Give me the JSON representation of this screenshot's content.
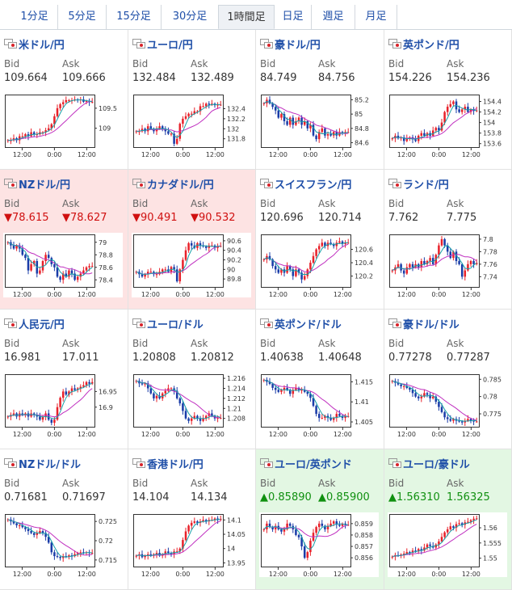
{
  "tabs": [
    "1分足",
    "5分足",
    "15分足",
    "30分足",
    "1時間足",
    "日足",
    "週足",
    "月足"
  ],
  "active_tab": "1時間足",
  "labels": {
    "bid": "Bid",
    "ask": "Ask"
  },
  "colors": {
    "up_candle": "#e8212a",
    "down_candle": "#1a3ca8",
    "ma_short": "#17a0a8",
    "ma_long": "#c030c0",
    "down_bg": "#fde3e3",
    "up_bg": "#e3f7e3",
    "link": "#1f4fa8"
  },
  "pairs": [
    {
      "name": "米ドル/円",
      "bid": "109.664",
      "ask": "109.666",
      "dir": "",
      "flag": "us-jp-flag-icon"
    },
    {
      "name": "ユーロ/円",
      "bid": "132.484",
      "ask": "132.489",
      "dir": "",
      "flag": "eu-jp-flag-icon"
    },
    {
      "name": "豪ドル/円",
      "bid": "84.749",
      "ask": "84.756",
      "dir": "",
      "flag": "au-jp-flag-icon"
    },
    {
      "name": "英ポンド/円",
      "bid": "154.226",
      "ask": "154.236",
      "dir": "",
      "flag": "gb-jp-flag-icon"
    },
    {
      "name": "NZドル/円",
      "bid": "▼78.615",
      "ask": "▼78.627",
      "dir": "down",
      "flag": "nz-jp-flag-icon"
    },
    {
      "name": "カナダドル/円",
      "bid": "▼90.491",
      "ask": "▼90.532",
      "dir": "down",
      "flag": "ca-jp-flag-icon"
    },
    {
      "name": "スイスフラン/円",
      "bid": "120.696",
      "ask": "120.714",
      "dir": "",
      "flag": "ch-jp-flag-icon"
    },
    {
      "name": "ランド/円",
      "bid": "7.762",
      "ask": "7.775",
      "dir": "",
      "flag": "za-jp-flag-icon"
    },
    {
      "name": "人民元/円",
      "bid": "16.981",
      "ask": "17.011",
      "dir": "",
      "flag": "cn-jp-flag-icon"
    },
    {
      "name": "ユーロ/ドル",
      "bid": "1.20808",
      "ask": "1.20812",
      "dir": "",
      "flag": "eu-us-flag-icon"
    },
    {
      "name": "英ポンド/ドル",
      "bid": "1.40638",
      "ask": "1.40648",
      "dir": "",
      "flag": "gb-us-flag-icon"
    },
    {
      "name": "豪ドル/ドル",
      "bid": "0.77278",
      "ask": "0.77287",
      "dir": "",
      "flag": "au-us-flag-icon"
    },
    {
      "name": "NZドル/ドル",
      "bid": "0.71681",
      "ask": "0.71697",
      "dir": "",
      "flag": "nz-us-flag-icon"
    },
    {
      "name": "香港ドル/円",
      "bid": "14.104",
      "ask": "14.134",
      "dir": "",
      "flag": "hk-jp-flag-icon"
    },
    {
      "name": "ユーロ/英ポンド",
      "bid": "▲0.85890",
      "ask": "▲0.85900",
      "dir": "up",
      "flag": "eu-gb-flag-icon"
    },
    {
      "name": "ユーロ/豪ドル",
      "bid": "▲1.56310",
      "ask": "1.56325",
      "dir": "up",
      "flag": "eu-au-flag-icon"
    }
  ],
  "chart_data": [
    {
      "type": "candlestick",
      "title": "米ドル/円",
      "x_ticks": [
        "12:00",
        "0:00",
        "12:00"
      ],
      "y_ticks": [
        "109.5",
        "109"
      ],
      "ylim": [
        108.55,
        109.8
      ],
      "closes": [
        108.7,
        108.7,
        108.75,
        108.7,
        108.8,
        108.8,
        108.85,
        108.8,
        108.9,
        108.85,
        108.85,
        108.9,
        108.9,
        108.95,
        109.0,
        109.1,
        109.3,
        109.5,
        109.6,
        109.65,
        109.7,
        109.7,
        109.7,
        109.72,
        109.7,
        109.72,
        109.66,
        109.68,
        109.65,
        109.66
      ]
    },
    {
      "type": "candlestick",
      "title": "ユーロ/円",
      "x_ticks": [
        "12:00",
        "0:00",
        "12:00"
      ],
      "y_ticks": [
        "132.4",
        "132.2",
        "132",
        "131.8"
      ],
      "ylim": [
        131.65,
        132.65
      ],
      "closes": [
        131.95,
        131.95,
        132.0,
        131.95,
        132.05,
        132.0,
        131.95,
        132.0,
        132.05,
        132.0,
        131.95,
        131.9,
        131.9,
        131.7,
        131.8,
        132.1,
        132.2,
        132.25,
        132.3,
        132.3,
        132.35,
        132.35,
        132.45,
        132.45,
        132.5,
        132.48,
        132.5,
        132.47,
        132.48,
        132.48
      ]
    },
    {
      "type": "candlestick",
      "title": "豪ドル/円",
      "x_ticks": [
        "12:00",
        "0:00",
        "12:00"
      ],
      "y_ticks": [
        "85.2",
        "85",
        "84.8",
        "84.6"
      ],
      "ylim": [
        84.55,
        85.25
      ],
      "closes": [
        85.15,
        85.2,
        85.15,
        85.1,
        85.05,
        84.95,
        85.0,
        84.9,
        84.85,
        84.95,
        84.85,
        84.9,
        84.95,
        84.85,
        84.9,
        84.8,
        84.85,
        84.7,
        84.65,
        84.75,
        84.8,
        84.7,
        84.72,
        84.7,
        84.75,
        84.7,
        84.75,
        84.74,
        84.75,
        84.75
      ]
    },
    {
      "type": "candlestick",
      "title": "英ポンド/円",
      "x_ticks": [
        "12:00",
        "0:00",
        "12:00"
      ],
      "y_ticks": [
        "154.4",
        "154.2",
        "154",
        "153.8",
        "153.6"
      ],
      "ylim": [
        153.55,
        154.5
      ],
      "closes": [
        153.7,
        153.75,
        153.7,
        153.72,
        153.65,
        153.7,
        153.72,
        153.68,
        153.65,
        153.75,
        153.8,
        153.75,
        153.8,
        153.75,
        153.85,
        153.9,
        153.85,
        154.0,
        154.2,
        154.3,
        154.35,
        154.4,
        154.25,
        154.2,
        154.25,
        154.3,
        154.2,
        154.25,
        154.22,
        154.23
      ]
    },
    {
      "type": "candlestick",
      "title": "NZドル/円",
      "x_ticks": [
        "12:00",
        "0:00",
        "12:00"
      ],
      "y_ticks": [
        "79",
        "78.8",
        "78.6",
        "78.4"
      ],
      "ylim": [
        78.3,
        79.1
      ],
      "closes": [
        79.0,
        78.95,
        78.9,
        78.95,
        78.9,
        78.8,
        78.75,
        78.55,
        78.65,
        78.7,
        78.5,
        78.55,
        78.7,
        78.8,
        78.75,
        78.65,
        78.6,
        78.45,
        78.4,
        78.5,
        78.45,
        78.55,
        78.5,
        78.4,
        78.45,
        78.5,
        78.55,
        78.6,
        78.62,
        78.62
      ]
    },
    {
      "type": "candlestick",
      "title": "カナダドル/円",
      "x_ticks": [
        "12:00",
        "0:00",
        "12:00"
      ],
      "y_ticks": [
        "90.6",
        "90.4",
        "90.2",
        "90",
        "89.8"
      ],
      "ylim": [
        89.65,
        90.7
      ],
      "closes": [
        89.95,
        89.9,
        89.85,
        89.9,
        89.95,
        89.95,
        89.9,
        89.9,
        89.95,
        90.0,
        90.0,
        89.95,
        90.05,
        90.0,
        89.75,
        90.0,
        90.2,
        90.4,
        90.55,
        90.5,
        90.45,
        90.55,
        90.5,
        90.48,
        90.45,
        90.5,
        90.5,
        90.45,
        90.49,
        90.49
      ]
    },
    {
      "type": "candlestick",
      "title": "スイスフラン/円",
      "x_ticks": [
        "12:00",
        "0:00",
        "12:00"
      ],
      "y_ticks": [
        "120.6",
        "120.4",
        "120.2"
      ],
      "ylim": [
        120.05,
        120.8
      ],
      "closes": [
        120.45,
        120.5,
        120.45,
        120.35,
        120.3,
        120.25,
        120.3,
        120.25,
        120.35,
        120.3,
        120.2,
        120.3,
        120.25,
        120.15,
        120.2,
        120.3,
        120.4,
        120.5,
        120.6,
        120.65,
        120.7,
        120.65,
        120.7,
        120.68,
        120.65,
        120.7,
        120.72,
        120.68,
        120.7,
        120.7
      ]
    },
    {
      "type": "candlestick",
      "title": "ランド/円",
      "x_ticks": [
        "12:00",
        "0:00",
        "12:00"
      ],
      "y_ticks": [
        "7.8",
        "7.78",
        "7.76",
        "7.74"
      ],
      "ylim": [
        7.725,
        7.805
      ],
      "closes": [
        7.75,
        7.755,
        7.76,
        7.75,
        7.745,
        7.755,
        7.76,
        7.755,
        7.76,
        7.755,
        7.765,
        7.76,
        7.765,
        7.77,
        7.76,
        7.775,
        7.79,
        7.8,
        7.79,
        7.78,
        7.77,
        7.78,
        7.765,
        7.76,
        7.74,
        7.75,
        7.76,
        7.765,
        7.76,
        7.762
      ]
    },
    {
      "type": "candlestick",
      "title": "人民元/円",
      "x_ticks": [
        "12:00",
        "0:00",
        "12:00"
      ],
      "y_ticks": [
        "16.95",
        "16.9"
      ],
      "ylim": [
        16.84,
        17.0
      ],
      "closes": [
        16.87,
        16.875,
        16.88,
        16.87,
        16.88,
        16.875,
        16.88,
        16.87,
        16.88,
        16.875,
        16.87,
        16.86,
        16.87,
        16.88,
        16.86,
        16.85,
        16.86,
        16.9,
        16.93,
        16.95,
        16.94,
        16.95,
        16.96,
        16.955,
        16.96,
        16.965,
        16.97,
        16.98,
        16.975,
        16.98
      ]
    },
    {
      "type": "candlestick",
      "title": "ユーロ/ドル",
      "x_ticks": [
        "12:00",
        "0:00",
        "12:00"
      ],
      "y_ticks": [
        "1.216",
        "1.214",
        "1.212",
        "1.21",
        "1.208"
      ],
      "ylim": [
        1.2065,
        1.2165
      ],
      "closes": [
        1.2155,
        1.215,
        1.2148,
        1.215,
        1.214,
        1.213,
        1.212,
        1.2125,
        1.212,
        1.213,
        1.2135,
        1.214,
        1.214,
        1.2135,
        1.212,
        1.211,
        1.2095,
        1.208,
        1.2075,
        1.208,
        1.2085,
        1.208,
        1.2075,
        1.208,
        1.2085,
        1.209,
        1.2085,
        1.208,
        1.2081,
        1.2081
      ]
    },
    {
      "type": "candlestick",
      "title": "英ポンド/ドル",
      "x_ticks": [
        "12:00",
        "0:00",
        "12:00"
      ],
      "y_ticks": [
        "1.415",
        "1.41",
        "1.405"
      ],
      "ylim": [
        1.404,
        1.4165
      ],
      "closes": [
        1.4155,
        1.415,
        1.4145,
        1.4135,
        1.413,
        1.4125,
        1.413,
        1.4135,
        1.413,
        1.412,
        1.413,
        1.4135,
        1.413,
        1.413,
        1.4125,
        1.412,
        1.411,
        1.409,
        1.407,
        1.406,
        1.406,
        1.4065,
        1.406,
        1.4055,
        1.406,
        1.407,
        1.4065,
        1.406,
        1.4064,
        1.4064
      ]
    },
    {
      "type": "candlestick",
      "title": "豪ドル/ドル",
      "x_ticks": [
        "12:00",
        "0:00",
        "12:00"
      ],
      "y_ticks": [
        "0.785",
        "0.78",
        "0.775"
      ],
      "ylim": [
        0.7715,
        0.786
      ],
      "closes": [
        0.7845,
        0.784,
        0.7835,
        0.783,
        0.783,
        0.7825,
        0.782,
        0.781,
        0.78,
        0.7795,
        0.78,
        0.781,
        0.7805,
        0.7795,
        0.78,
        0.7785,
        0.777,
        0.7755,
        0.774,
        0.7735,
        0.773,
        0.7735,
        0.773,
        0.7728,
        0.7725,
        0.773,
        0.7735,
        0.773,
        0.7728,
        0.7728
      ]
    },
    {
      "type": "candlestick",
      "title": "NZドル/ドル",
      "x_ticks": [
        "12:00",
        "0:00",
        "12:00"
      ],
      "y_ticks": [
        "0.725",
        "0.72",
        "0.715"
      ],
      "ylim": [
        0.7135,
        0.7265
      ],
      "closes": [
        0.7255,
        0.725,
        0.7245,
        0.724,
        0.724,
        0.7235,
        0.723,
        0.7225,
        0.722,
        0.7215,
        0.722,
        0.7225,
        0.722,
        0.721,
        0.7195,
        0.717,
        0.716,
        0.7158,
        0.7155,
        0.716,
        0.7158,
        0.7162,
        0.716,
        0.7165,
        0.7168,
        0.717,
        0.7168,
        0.717,
        0.7168,
        0.7168
      ]
    },
    {
      "type": "candlestick",
      "title": "香港ドル/円",
      "x_ticks": [
        "12:00",
        "0:00",
        "12:00"
      ],
      "y_ticks": [
        "14.1",
        "14.05",
        "14",
        "13.95"
      ],
      "ylim": [
        13.94,
        14.115
      ],
      "closes": [
        13.975,
        13.98,
        13.97,
        13.975,
        13.98,
        13.975,
        13.98,
        13.985,
        13.975,
        13.98,
        13.99,
        13.985,
        13.98,
        13.99,
        13.99,
        14.0,
        14.03,
        14.06,
        14.08,
        14.09,
        14.095,
        14.09,
        14.095,
        14.1,
        14.095,
        14.1,
        14.1,
        14.105,
        14.1,
        14.104
      ]
    },
    {
      "type": "candlestick",
      "title": "ユーロ/英ポンド",
      "x_ticks": [
        "12:00",
        "0:00",
        "12:00"
      ],
      "y_ticks": [
        "0.859",
        "0.858",
        "0.857",
        "0.856"
      ],
      "ylim": [
        0.8553,
        0.8597
      ],
      "closes": [
        0.8585,
        0.859,
        0.8587,
        0.8585,
        0.8588,
        0.8585,
        0.8583,
        0.8585,
        0.859,
        0.8588,
        0.8585,
        0.858,
        0.8578,
        0.857,
        0.856,
        0.8565,
        0.8575,
        0.8582,
        0.8587,
        0.859,
        0.8588,
        0.8585,
        0.8588,
        0.859,
        0.8592,
        0.8589,
        0.8588,
        0.859,
        0.8589,
        0.8589
      ]
    },
    {
      "type": "candlestick",
      "title": "ユーロ/豪ドル",
      "x_ticks": [
        "12:00",
        "0:00",
        "12:00"
      ],
      "y_ticks": [
        "1.56",
        "1.555",
        "1.55"
      ],
      "ylim": [
        1.5475,
        1.564
      ],
      "closes": [
        1.5505,
        1.551,
        1.5508,
        1.5512,
        1.5515,
        1.552,
        1.5518,
        1.5525,
        1.5522,
        1.553,
        1.5525,
        1.5535,
        1.5545,
        1.554,
        1.5535,
        1.5545,
        1.5555,
        1.557,
        1.5585,
        1.5595,
        1.5605,
        1.56,
        1.5612,
        1.5615,
        1.561,
        1.5618,
        1.562,
        1.5625,
        1.563,
        1.5631
      ]
    }
  ]
}
